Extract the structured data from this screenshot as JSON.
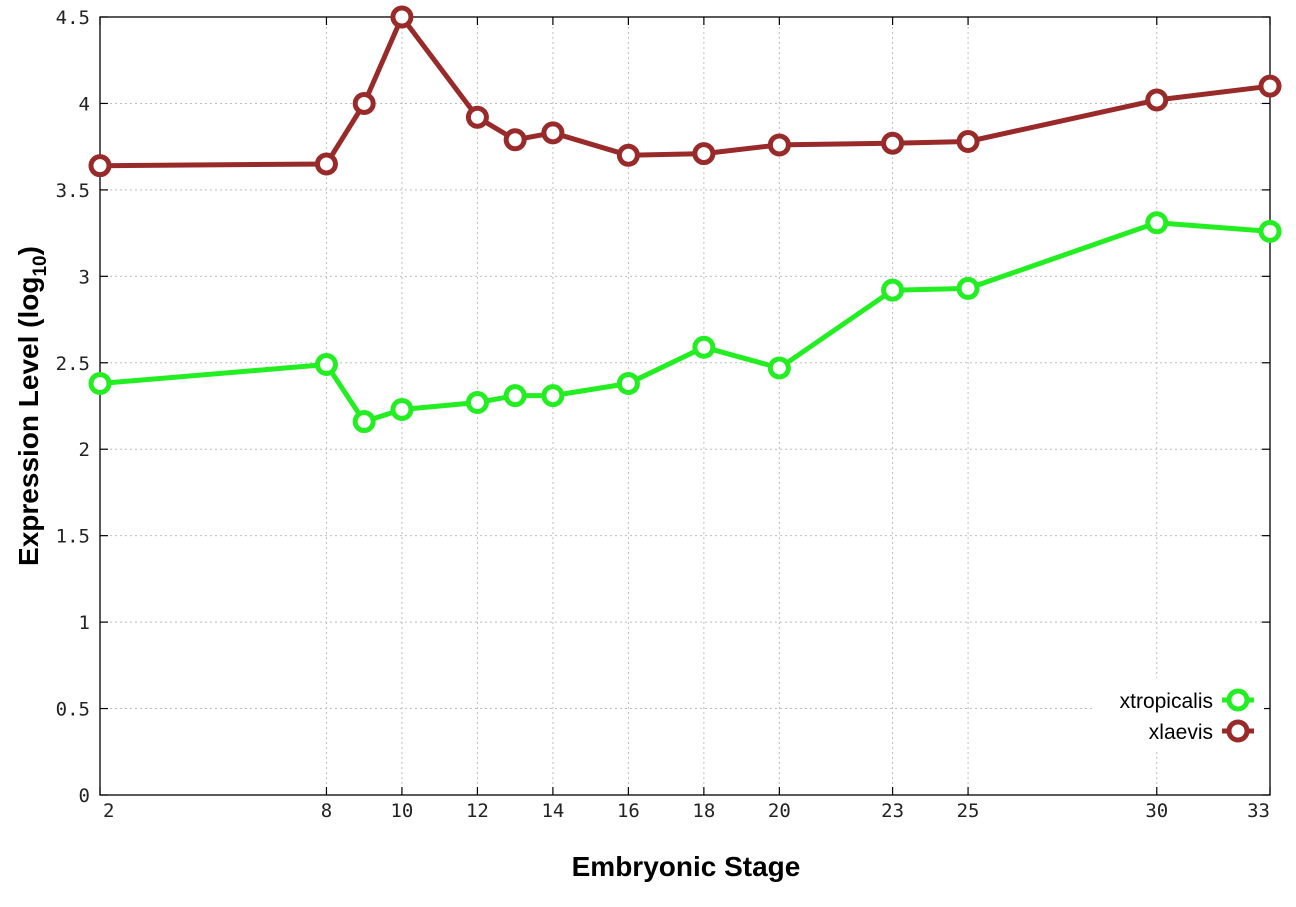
{
  "chart_data": {
    "type": "line",
    "title": "",
    "xlabel": "Embryonic Stage",
    "ylabel": {
      "main": "Expression Level (log",
      "subscript": "10",
      "close": ")"
    },
    "x": [
      2,
      8,
      9,
      10,
      12,
      13,
      14,
      16,
      18,
      20,
      23,
      25,
      30,
      33
    ],
    "xticks": [
      "2",
      "8",
      "10",
      "12",
      "14",
      "16",
      "18",
      "20",
      "23",
      "25",
      "30",
      "33"
    ],
    "xtick_values": [
      2,
      8,
      10,
      12,
      14,
      16,
      18,
      20,
      23,
      25,
      30,
      33
    ],
    "yticks": [
      "0",
      "0.5",
      "1",
      "1.5",
      "2",
      "2.5",
      "3",
      "3.5",
      "4",
      "4.5"
    ],
    "ytick_values": [
      0,
      0.5,
      1,
      1.5,
      2,
      2.5,
      3,
      3.5,
      4,
      4.5
    ],
    "xlim": [
      2,
      33
    ],
    "ylim": [
      0,
      4.5
    ],
    "grid": true,
    "legend_position": "bottom-right",
    "series": [
      {
        "name": "xtropicalis",
        "color": "#22ee22",
        "marker": "open-circle",
        "values": [
          2.38,
          2.49,
          2.16,
          2.23,
          2.27,
          2.31,
          2.31,
          2.38,
          2.59,
          2.47,
          2.92,
          2.93,
          3.31,
          3.26
        ]
      },
      {
        "name": "xlaevis",
        "color": "#992a2a",
        "marker": "open-circle",
        "values": [
          3.64,
          3.65,
          4.0,
          4.5,
          3.92,
          3.79,
          3.83,
          3.7,
          3.71,
          3.76,
          3.77,
          3.78,
          4.02,
          4.1
        ]
      }
    ]
  }
}
